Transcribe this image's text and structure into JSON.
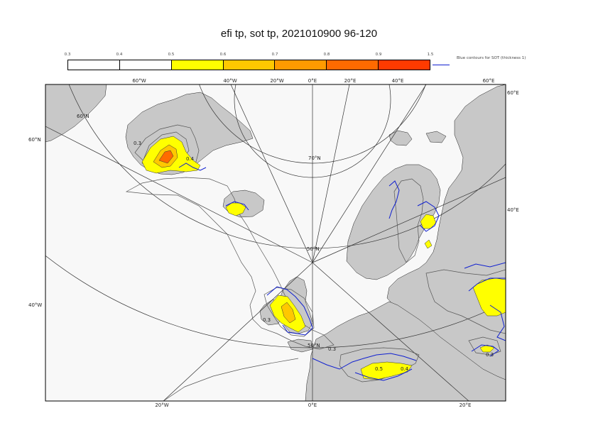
{
  "title": "efi tp, sot tp, 2021010900 96-120",
  "colorbar": {
    "ticks": [
      "0.3",
      "0.4",
      "0.5",
      "0.6",
      "0.7",
      "0.8",
      "0.9",
      "1.5"
    ],
    "colors": [
      "#ffffff",
      "#ffffff",
      "#ffff00",
      "#ffc800",
      "#ff9a00",
      "#ff6a00",
      "#ff3a00"
    ],
    "legend_label": "Blue contours for SOT (thickness 1)",
    "legend_color": "#1020d0"
  },
  "map": {
    "land_color": "#c8c8c8",
    "sea_color": "#f8f8f8",
    "sot_color": "#1020d0",
    "top_longitudes": [
      "60°W",
      "40°W",
      "20°W",
      "0°E",
      "20°E",
      "40°E",
      "60°E"
    ],
    "bottom_longitudes": [
      "20°W",
      "0°E",
      "20°E"
    ],
    "right_labels": [
      "60°E",
      "40°E"
    ],
    "left_labels": [
      "60°N",
      "40°W"
    ],
    "latitudes": [
      "60°N",
      "70°N",
      "60°N",
      "50°N",
      "50°N"
    ],
    "contour_values": [
      "0.3",
      "0.4",
      "0.3",
      "0.3",
      "0.5",
      "0.4",
      "0.3"
    ]
  }
}
